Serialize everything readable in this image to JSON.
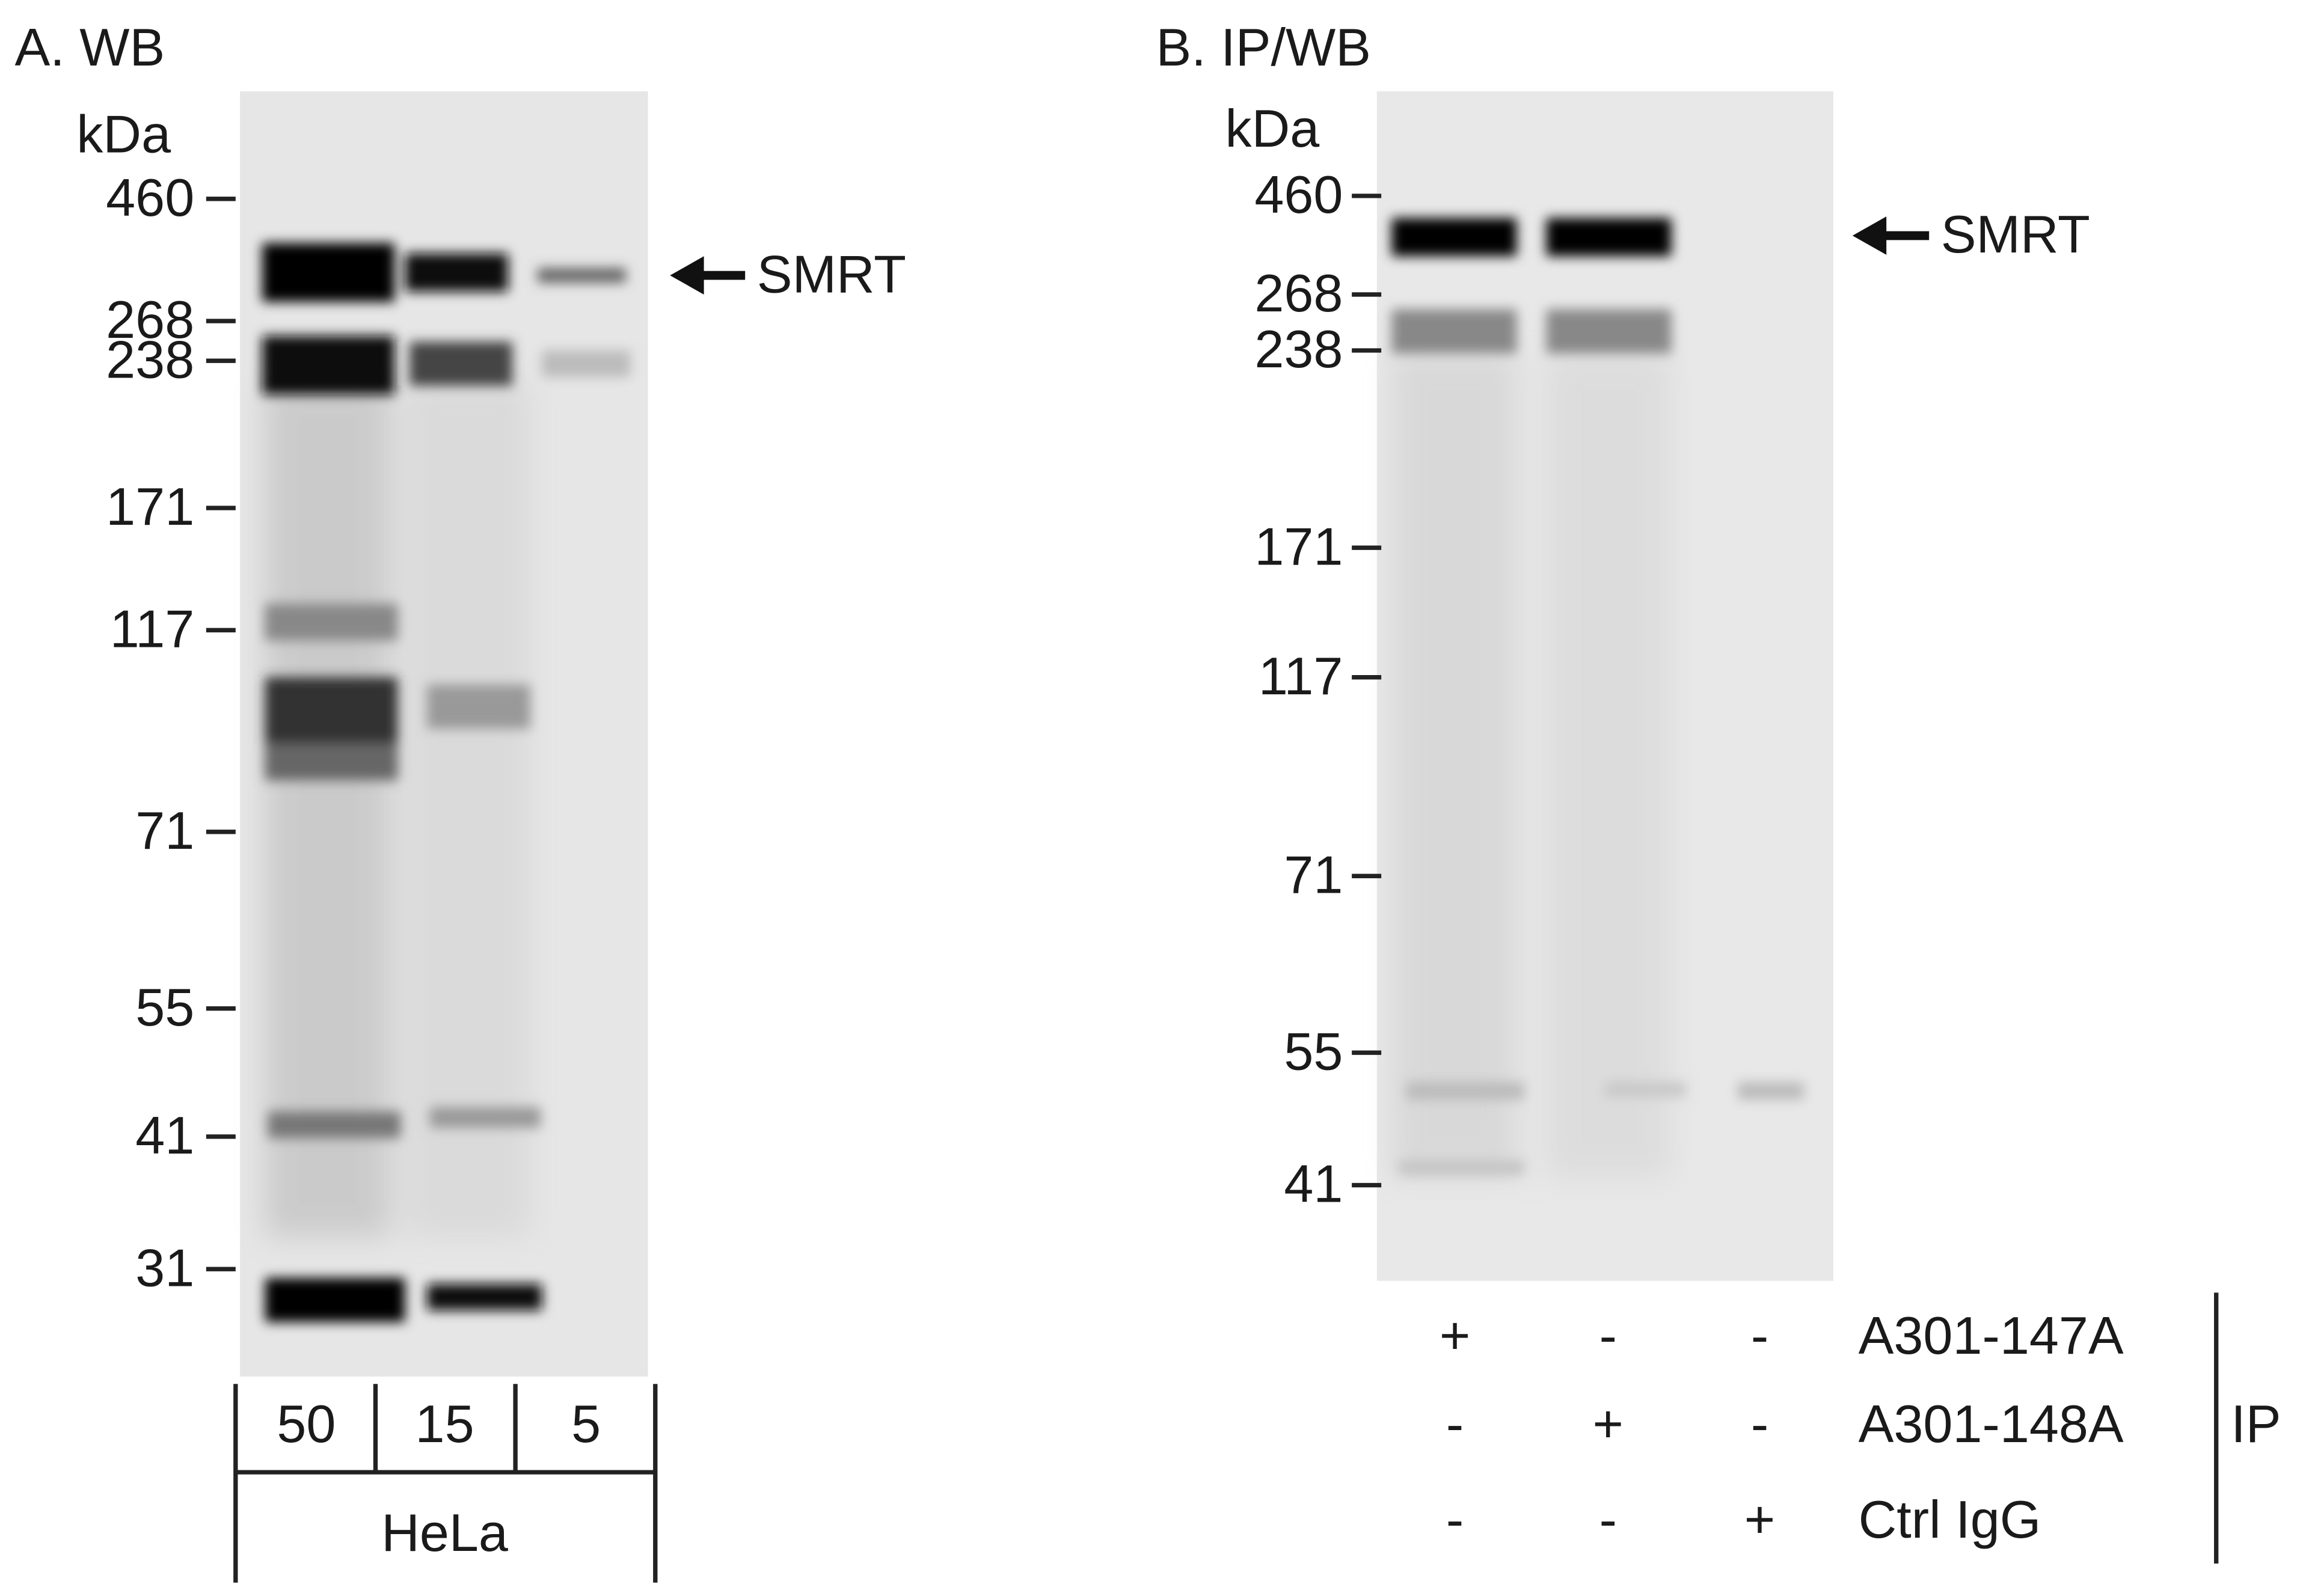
{
  "panels": [
    {
      "title": "A. WB",
      "unit": "kDa",
      "markers": [
        "460",
        "268",
        "238",
        "171",
        "117",
        "71",
        "55",
        "41",
        "31"
      ],
      "target": "SMRT",
      "lanes": [
        "50",
        "15",
        "5"
      ],
      "sample": "HeLa"
    },
    {
      "title": "B. IP/WB",
      "unit": "kDa",
      "markers": [
        "460",
        "268",
        "238",
        "171",
        "117",
        "71",
        "55",
        "41"
      ],
      "target": "SMRT",
      "rows": [
        {
          "label": "A301-147A",
          "signs": [
            "+",
            "-",
            "-"
          ]
        },
        {
          "label": "A301-148A",
          "signs": [
            "-",
            "+",
            "-"
          ]
        },
        {
          "label": "Ctrl IgG",
          "signs": [
            "-",
            "-",
            "+"
          ]
        }
      ],
      "group": "IP"
    }
  ]
}
